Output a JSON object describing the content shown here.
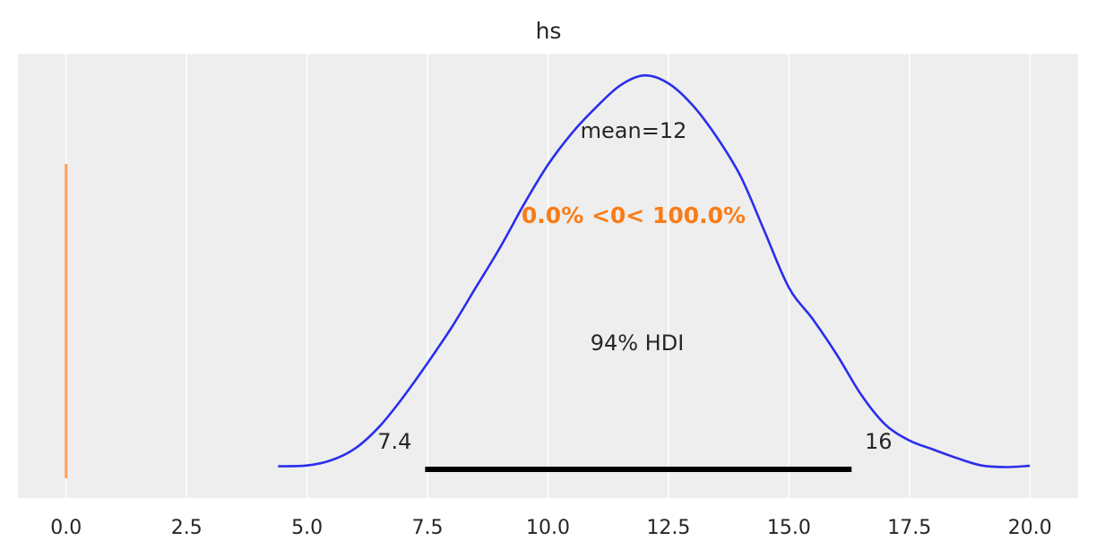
{
  "chart_data": {
    "type": "line",
    "title": "hs",
    "xlabel": "",
    "ylabel": "",
    "xlim": [
      -1.0,
      21.0
    ],
    "x_ticks": [
      0.0,
      2.5,
      5.0,
      7.5,
      10.0,
      12.5,
      15.0,
      17.5,
      20.0
    ],
    "x_tick_labels": [
      "0.0",
      "2.5",
      "5.0",
      "7.5",
      "10.0",
      "12.5",
      "15.0",
      "17.5",
      "20.0"
    ],
    "grid": true,
    "background": "#eeeeee",
    "series": [
      {
        "color": "#2a2eec",
        "points": [
          [
            4.4,
            0.01
          ],
          [
            5.0,
            0.012
          ],
          [
            5.5,
            0.025
          ],
          [
            6.0,
            0.055
          ],
          [
            6.5,
            0.11
          ],
          [
            7.0,
            0.185
          ],
          [
            7.5,
            0.27
          ],
          [
            8.0,
            0.36
          ],
          [
            8.5,
            0.46
          ],
          [
            9.0,
            0.56
          ],
          [
            9.5,
            0.67
          ],
          [
            10.0,
            0.77
          ],
          [
            10.5,
            0.85
          ],
          [
            11.0,
            0.915
          ],
          [
            11.5,
            0.97
          ],
          [
            12.0,
            0.995
          ],
          [
            12.5,
            0.975
          ],
          [
            13.0,
            0.92
          ],
          [
            13.5,
            0.84
          ],
          [
            14.0,
            0.74
          ],
          [
            14.5,
            0.6
          ],
          [
            15.0,
            0.46
          ],
          [
            15.5,
            0.38
          ],
          [
            16.0,
            0.29
          ],
          [
            16.5,
            0.19
          ],
          [
            17.0,
            0.115
          ],
          [
            17.5,
            0.075
          ],
          [
            18.0,
            0.052
          ],
          [
            18.5,
            0.03
          ],
          [
            19.0,
            0.012
          ],
          [
            19.5,
            0.008
          ],
          [
            20.0,
            0.011
          ]
        ]
      }
    ],
    "reference": {
      "value": 0.0,
      "color": "#ffa05a",
      "label": "0.0% <0< 100.0%",
      "label_color": "#fa7c17"
    },
    "mean_label": "mean=12",
    "hdi": {
      "label": "94% HDI",
      "low": 7.45,
      "high": 16.3,
      "low_label": "7.4",
      "high_label": "16"
    }
  }
}
